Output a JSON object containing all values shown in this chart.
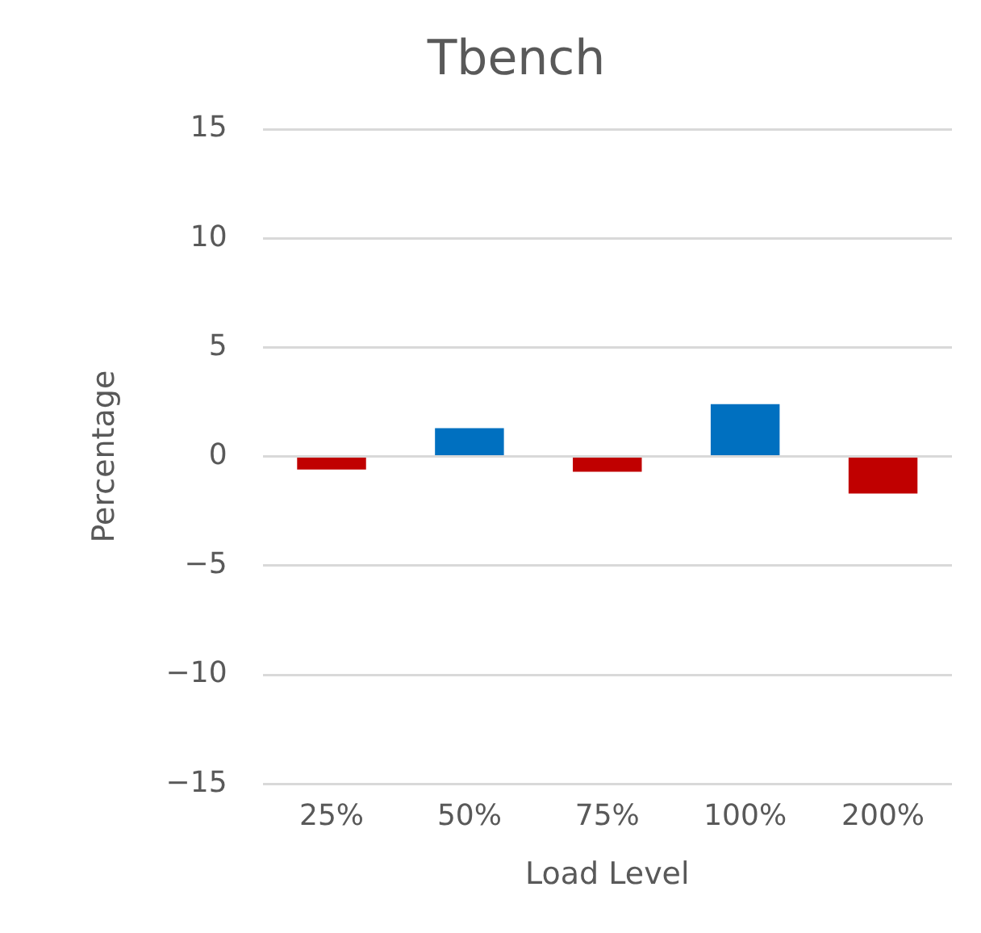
{
  "chart_data": {
    "type": "bar",
    "title": "Tbench",
    "xlabel": "Load Level",
    "ylabel": "Percentage",
    "categories": [
      "25%",
      "50%",
      "75%",
      "100%",
      "200%"
    ],
    "values": [
      -0.6,
      1.3,
      -0.7,
      2.4,
      -1.7
    ],
    "colors": [
      "#c00000",
      "#0070c0",
      "#c00000",
      "#0070c0",
      "#c00000"
    ],
    "ylim": [
      -15,
      15
    ],
    "yticks": [
      -15,
      -10,
      -5,
      0,
      5,
      10,
      15
    ],
    "grid": "y"
  }
}
